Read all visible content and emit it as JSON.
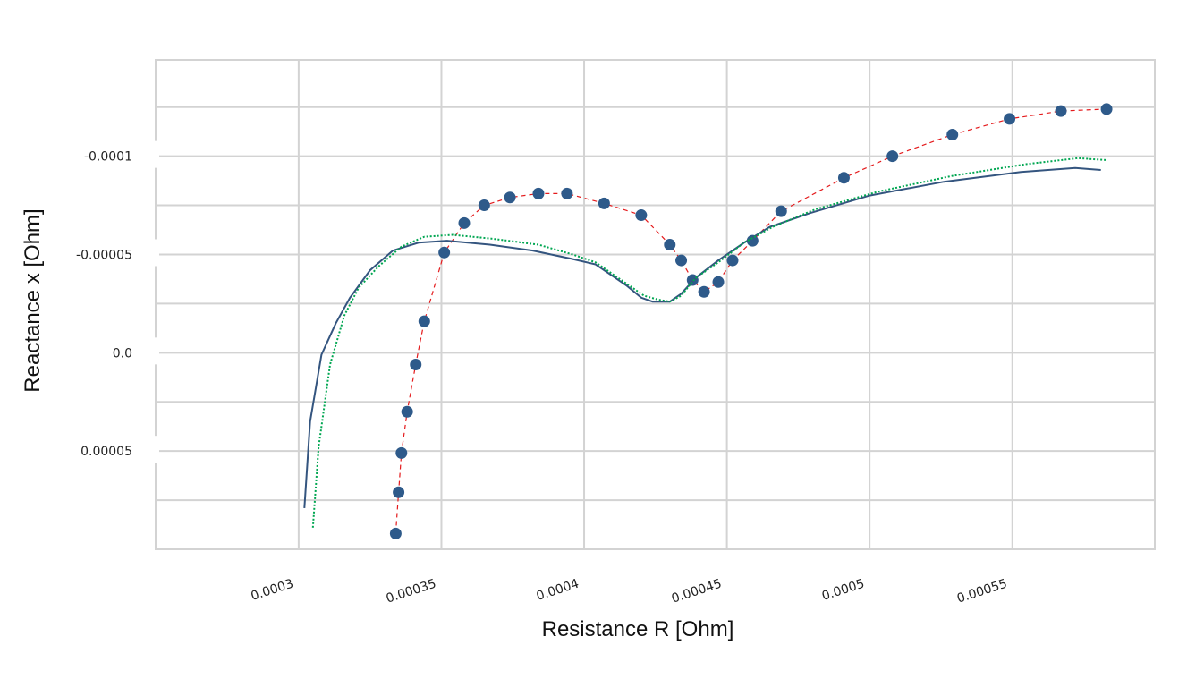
{
  "chart_data": {
    "type": "scatter",
    "title": "",
    "xlabel": "Resistance R [Ohm]",
    "ylabel": "Reactance x [Ohm]",
    "xlim": [
      0.0002499,
      0.0005999
    ],
    "ylim": [
      0.0001,
      -0.000149
    ],
    "y_inverted": true,
    "grid": true,
    "legend": "none",
    "x_ticks": [
      {
        "value": 0.0003,
        "label": "0.0003"
      },
      {
        "value": 0.00035,
        "label": "0.00035"
      },
      {
        "value": 0.0004,
        "label": "0.0004"
      },
      {
        "value": 0.00045,
        "label": "0.00045"
      },
      {
        "value": 0.0005,
        "label": "0.0005"
      },
      {
        "value": 0.00055,
        "label": "0.00055"
      }
    ],
    "x_gridlines": [
      0.0002499,
      0.0003,
      0.00035,
      0.0004,
      0.00045,
      0.0005,
      0.00055,
      0.0005999
    ],
    "y_ticks": [
      {
        "value": -0.0001,
        "label": "-0.0001"
      },
      {
        "value": -5e-05,
        "label": "-0.00005"
      },
      {
        "value": 0.0,
        "label": "0.0"
      },
      {
        "value": 5e-05,
        "label": "0.00005"
      }
    ],
    "y_gridlines": [
      -0.000149,
      -0.000125,
      -0.0001,
      -7.5e-05,
      -5e-05,
      -2.5e-05,
      0.0,
      2.5e-05,
      5e-05,
      7.5e-05,
      0.0001
    ],
    "series": [
      {
        "style": "markers-dashed",
        "color": "#2e5a8a",
        "line_color": "#e41a1c",
        "x": [
          0.000334,
          0.000335,
          0.000336,
          0.000338,
          0.000341,
          0.000344,
          0.000351,
          0.000358,
          0.000365,
          0.000374,
          0.000384,
          0.000394,
          0.000407,
          0.00042,
          0.00043,
          0.000434,
          0.000438,
          0.000442,
          0.000447,
          0.000452,
          0.000459,
          0.000469,
          0.000491,
          0.000508,
          0.000529,
          0.000549,
          0.000567,
          0.000583
        ],
        "y": [
          9.2e-05,
          7.1e-05,
          5.1e-05,
          3e-05,
          6e-06,
          -1.6e-05,
          -5.1e-05,
          -6.6e-05,
          -7.5e-05,
          -7.9e-05,
          -8.1e-05,
          -8.1e-05,
          -7.6e-05,
          -7e-05,
          -5.5e-05,
          -4.7e-05,
          -3.7e-05,
          -3.1e-05,
          -3.6e-05,
          -4.7e-05,
          -5.7e-05,
          -7.2e-05,
          -8.9e-05,
          -0.0001,
          -0.000111,
          -0.000119,
          -0.000123,
          -0.000124
        ]
      },
      {
        "style": "solid",
        "color": "#34557f",
        "x": [
          0.000302,
          0.000304,
          0.000308,
          0.000313,
          0.000318,
          0.000325,
          0.000333,
          0.000342,
          0.000352,
          0.000367,
          0.000382,
          0.000395,
          0.000404,
          0.00041,
          0.000415,
          0.00042,
          0.000424,
          0.00043,
          0.000434,
          0.000439,
          0.000447,
          0.000456,
          0.000465,
          0.000479,
          0.0005,
          0.000526,
          0.000553,
          0.000572,
          0.000581
        ],
        "y": [
          7.9e-05,
          3.5e-05,
          1e-06,
          -1.5e-05,
          -2.8e-05,
          -4.2e-05,
          -5.2e-05,
          -5.6e-05,
          -5.7e-05,
          -5.5e-05,
          -5.2e-05,
          -4.8e-05,
          -4.5e-05,
          -3.9e-05,
          -3.4e-05,
          -2.8e-05,
          -2.6e-05,
          -2.6e-05,
          -3e-05,
          -3.8e-05,
          -4.7e-05,
          -5.6e-05,
          -6.4e-05,
          -7.1e-05,
          -8e-05,
          -8.7e-05,
          -9.2e-05,
          -9.4e-05,
          -9.3e-05
        ]
      },
      {
        "style": "dotted",
        "color": "#00a651",
        "x": [
          0.000305,
          0.000307,
          0.000311,
          0.000316,
          0.000321,
          0.000328,
          0.000336,
          0.000344,
          0.000354,
          0.000368,
          0.000384,
          0.000396,
          0.000404,
          0.00041,
          0.000416,
          0.000421,
          0.000426,
          0.00043,
          0.000434,
          0.000439,
          0.000447,
          0.000456,
          0.000466,
          0.000481,
          0.000503,
          0.000529,
          0.000555,
          0.000573,
          0.000583
        ],
        "y": [
          8.9e-05,
          4.8e-05,
          6e-06,
          -1.9e-05,
          -3.3e-05,
          -4.4e-05,
          -5.4e-05,
          -5.9e-05,
          -6e-05,
          -5.8e-05,
          -5.5e-05,
          -5e-05,
          -4.6e-05,
          -4e-05,
          -3.4e-05,
          -2.9e-05,
          -2.7e-05,
          -2.6e-05,
          -2.9e-05,
          -3.8e-05,
          -4.6e-05,
          -5.6e-05,
          -6.4e-05,
          -7.3e-05,
          -8.2e-05,
          -9e-05,
          -9.6e-05,
          -9.9e-05,
          -9.8e-05
        ]
      }
    ]
  }
}
